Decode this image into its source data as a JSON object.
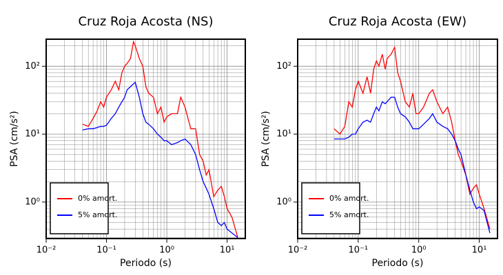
{
  "chart_data": [
    {
      "type": "line",
      "title": "Cruz Roja Acosta (NS)",
      "x_label": "Periodo (s)",
      "y_label": "PSA (cm/s²)",
      "log_x": true,
      "log_y": true,
      "grid": true,
      "minor_grid": true,
      "legend": "lower left",
      "xlim": [
        0.01,
        20
      ],
      "ylim": [
        0.29,
        250
      ],
      "xticks": [
        {
          "value": 0.01,
          "label": "10⁻²"
        },
        {
          "value": 0.1,
          "label": "10⁻¹"
        },
        {
          "value": 1,
          "label": "10⁰"
        },
        {
          "value": 10,
          "label": "10¹"
        }
      ],
      "yticks": [
        {
          "value": 1,
          "label": "10⁰"
        },
        {
          "value": 10,
          "label": "10¹"
        },
        {
          "value": 100,
          "label": "10²"
        }
      ],
      "x": [
        0.04,
        0.05,
        0.06,
        0.07,
        0.08,
        0.09,
        0.1,
        0.12,
        0.14,
        0.16,
        0.18,
        0.2,
        0.22,
        0.25,
        0.28,
        0.3,
        0.35,
        0.4,
        0.45,
        0.5,
        0.6,
        0.7,
        0.8,
        0.9,
        1,
        1.2,
        1.5,
        1.7,
        2,
        2.5,
        3,
        3.5,
        4,
        4.5,
        5,
        6,
        7,
        8,
        9,
        10,
        12,
        15
      ],
      "series": [
        {
          "name": "0% amort.",
          "color": "#ff0000",
          "values": [
            14,
            13,
            17,
            22,
            30,
            25,
            35,
            45,
            60,
            45,
            80,
            100,
            110,
            130,
            230,
            200,
            130,
            100,
            50,
            40,
            35,
            20,
            25,
            15,
            18,
            20,
            20,
            35,
            25,
            12,
            12,
            5,
            4,
            2.5,
            3,
            1.2,
            1.5,
            1.7,
            1.2,
            0.8,
            0.6,
            0.3
          ]
        },
        {
          "name": "5% amort.",
          "color": "#0000ff",
          "values": [
            11.5,
            12,
            12,
            12.5,
            13,
            13,
            13.5,
            17,
            20,
            25,
            30,
            35,
            45,
            50,
            55,
            58,
            35,
            20,
            15,
            14,
            12,
            10,
            9,
            8,
            8,
            7,
            7.5,
            8,
            8.5,
            7,
            5,
            3,
            2,
            1.6,
            1.3,
            0.8,
            0.5,
            0.45,
            0.5,
            0.4,
            0.35,
            0.3
          ]
        }
      ]
    },
    {
      "type": "line",
      "title": "Cruz Roja Acosta (EW)",
      "x_label": "Periodo (s)",
      "y_label": "PSA (cm/s²)",
      "log_x": true,
      "log_y": true,
      "grid": true,
      "minor_grid": true,
      "legend": "lower left",
      "xlim": [
        0.01,
        20
      ],
      "ylim": [
        0.29,
        250
      ],
      "xticks": [
        {
          "value": 0.01,
          "label": "10⁻²"
        },
        {
          "value": 0.1,
          "label": "10⁻¹"
        },
        {
          "value": 1,
          "label": "10⁰"
        },
        {
          "value": 10,
          "label": "10¹"
        }
      ],
      "yticks": [
        {
          "value": 1,
          "label": "10⁰"
        },
        {
          "value": 10,
          "label": "10¹"
        },
        {
          "value": 100,
          "label": "10²"
        }
      ],
      "x": [
        0.04,
        0.05,
        0.06,
        0.07,
        0.08,
        0.09,
        0.1,
        0.12,
        0.14,
        0.16,
        0.18,
        0.2,
        0.22,
        0.25,
        0.28,
        0.3,
        0.35,
        0.4,
        0.45,
        0.5,
        0.6,
        0.7,
        0.8,
        0.9,
        1,
        1.2,
        1.5,
        1.7,
        2,
        2.5,
        3,
        3.5,
        4,
        4.5,
        5,
        6,
        7,
        8,
        9,
        10,
        12,
        15
      ],
      "series": [
        {
          "name": "0% amort.",
          "color": "#ff0000",
          "values": [
            12,
            10,
            13,
            30,
            25,
            45,
            60,
            40,
            70,
            40,
            90,
            120,
            100,
            150,
            90,
            130,
            150,
            190,
            80,
            60,
            30,
            25,
            40,
            20,
            20,
            25,
            40,
            45,
            30,
            20,
            25,
            15,
            8,
            5,
            4,
            2.5,
            1.3,
            1.6,
            1.8,
            1.3,
            0.8,
            0.4
          ]
        },
        {
          "name": "5% amort.",
          "color": "#0000ff",
          "values": [
            8.5,
            8.5,
            8.5,
            9,
            10,
            10,
            12,
            15,
            16,
            15,
            20,
            25,
            22,
            30,
            28,
            30,
            35,
            35,
            25,
            20,
            18,
            15,
            12,
            12,
            12,
            14,
            17,
            20,
            15,
            13,
            12,
            10,
            8,
            6,
            5,
            2.5,
            1.5,
            1,
            0.8,
            0.85,
            0.75,
            0.35
          ]
        }
      ]
    }
  ]
}
